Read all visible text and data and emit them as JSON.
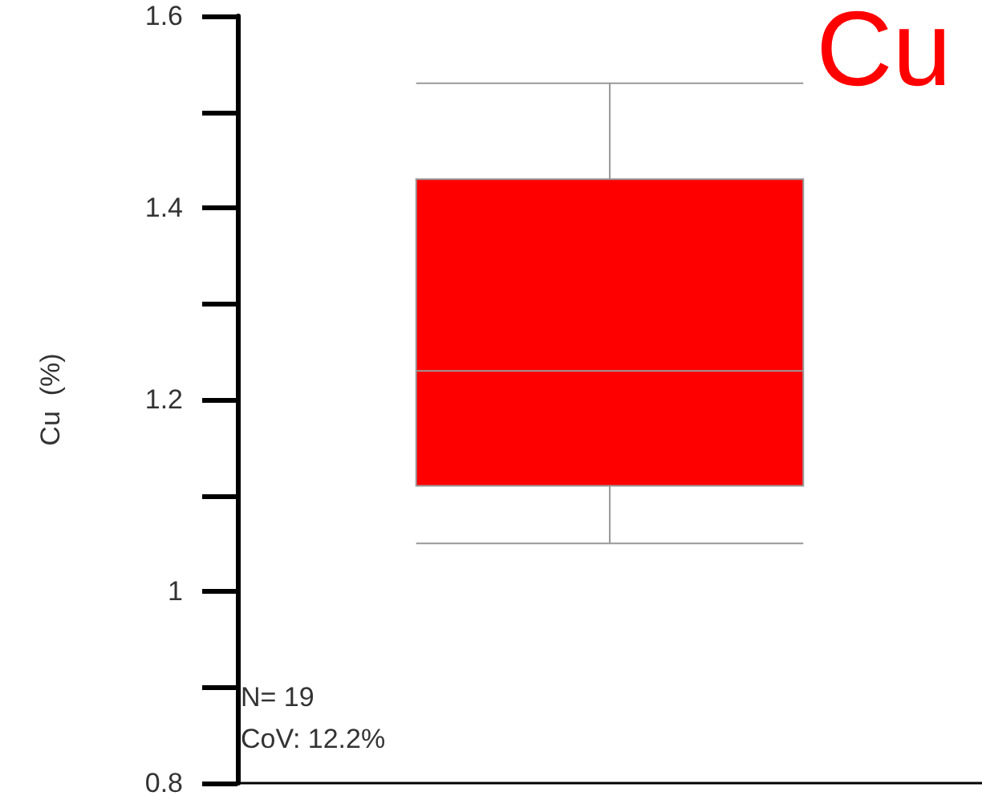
{
  "chart_data": {
    "type": "box",
    "title": "Cu",
    "ylabel": "Cu  (%)",
    "categories": [
      null
    ],
    "series": [
      {
        "color": "#ff0000",
        "boxes": [
          {
            "low": 1.05,
            "q1": 1.11,
            "median": 1.23,
            "q3": 1.43,
            "high": 1.53
          }
        ]
      }
    ],
    "ylim": [
      0.8,
      1.6
    ],
    "yticks": [
      0.8,
      1,
      1.2,
      1.4,
      1.6
    ],
    "grid": false,
    "annotations": [
      "N= 19",
      "CoV: 12.2%"
    ]
  }
}
